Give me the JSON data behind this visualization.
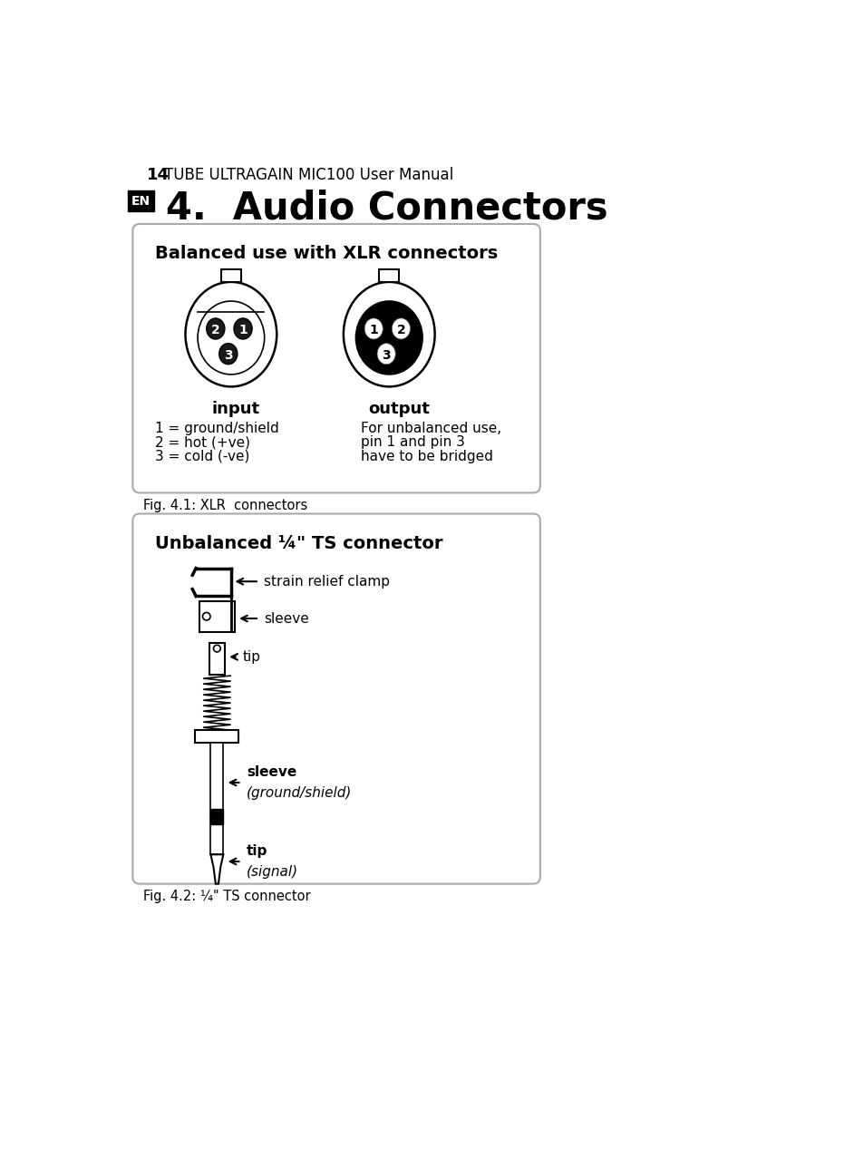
{
  "page_num": "14",
  "page_title": "TUBE ULTRAGAIN MIC100 User Manual",
  "section_title": "4.  Audio Connectors",
  "en_label": "EN",
  "box1_title": "Balanced use with XLR connectors",
  "input_label": "input",
  "output_label": "output",
  "input_line1": "1 = ground/shield",
  "input_line2": "2 = hot (+ve)",
  "input_line3": "3 = cold (-ve)",
  "output_line1": "For unbalanced use,",
  "output_line2": "pin 1 and pin 3",
  "output_line3": "have to be bridged",
  "fig1_caption": "Fig. 4.1: XLR  connectors",
  "box2_title": "Unbalanced ¼\" TS connector",
  "ts_label1": "strain relief clamp",
  "ts_label2": "sleeve",
  "ts_label3": "tip",
  "ts_label4_line1": "sleeve",
  "ts_label4_line2": "(ground/shield)",
  "ts_label5_line1": "tip",
  "ts_label5_line2": "(signal)",
  "fig2_caption": "Fig. 4.2: ¼\" TS connector",
  "bg_color": "#ffffff",
  "box_bg": "#ffffff",
  "box_border": "#aaaaaa",
  "text_color": "#000000"
}
